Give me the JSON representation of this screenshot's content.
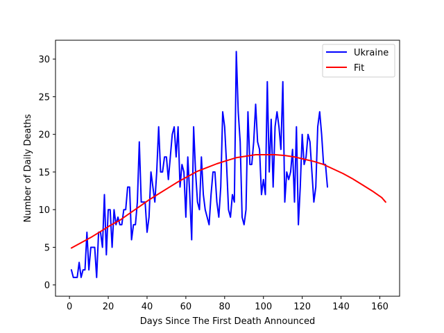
{
  "chart_data": {
    "type": "line",
    "title": "",
    "xlabel": "Days Since The First Death Announced",
    "ylabel": "Number of Daily Deaths",
    "xlim": [
      -7.2,
      170.2
    ],
    "ylim": [
      -1.5,
      32.5
    ],
    "xticks": [
      0,
      20,
      40,
      60,
      80,
      100,
      120,
      140,
      160
    ],
    "yticks": [
      0,
      5,
      10,
      15,
      20,
      25,
      30
    ],
    "grid": false,
    "legend_position": "top-right",
    "series": [
      {
        "name": "Ukraine",
        "color": "#0000ff",
        "x": [
          1,
          2,
          3,
          4,
          5,
          6,
          7,
          8,
          9,
          10,
          11,
          12,
          13,
          14,
          15,
          16,
          17,
          18,
          19,
          20,
          21,
          22,
          23,
          24,
          25,
          26,
          27,
          28,
          29,
          30,
          31,
          32,
          33,
          34,
          35,
          36,
          37,
          38,
          39,
          40,
          41,
          42,
          43,
          44,
          45,
          46,
          47,
          48,
          49,
          50,
          51,
          52,
          53,
          54,
          55,
          56,
          57,
          58,
          59,
          60,
          61,
          62,
          63,
          64,
          65,
          66,
          67,
          68,
          69,
          70,
          71,
          72,
          73,
          74,
          75,
          76,
          77,
          78,
          79,
          80,
          81,
          82,
          83,
          84,
          85,
          86,
          87,
          88,
          89,
          90,
          91,
          92,
          93,
          94,
          95,
          96,
          97,
          98,
          99,
          100,
          101,
          102,
          103,
          104,
          105,
          106,
          107,
          108,
          109,
          110,
          111,
          112,
          113,
          114,
          115,
          116,
          117,
          118,
          119,
          120,
          121,
          122,
          123,
          124,
          125,
          126,
          127,
          128,
          129,
          130,
          131,
          132,
          133
        ],
        "y": [
          2,
          1,
          1,
          1,
          3,
          1,
          2,
          2,
          7,
          2,
          5,
          5,
          5,
          1,
          7,
          7,
          5,
          12,
          4,
          10,
          10,
          5,
          10,
          8,
          9,
          8,
          8,
          10,
          10,
          13,
          13,
          6,
          8,
          8,
          11,
          19,
          11,
          11,
          11,
          7,
          9,
          15,
          13,
          11,
          15,
          21,
          15,
          15,
          17,
          17,
          14,
          17,
          20,
          21,
          17,
          21,
          13,
          16,
          15,
          9,
          17,
          12,
          6,
          21,
          15,
          11,
          10,
          17,
          12,
          10,
          9,
          8,
          12,
          15,
          15,
          11,
          9,
          13,
          23,
          21,
          16,
          10,
          9,
          12,
          11,
          31,
          23,
          19,
          9,
          8,
          10,
          23,
          16,
          16,
          19,
          24,
          19,
          18,
          12,
          14,
          12,
          27,
          15,
          22,
          13,
          21,
          23,
          21,
          18,
          27,
          11,
          15,
          14,
          15,
          18,
          11,
          21,
          8,
          13,
          20,
          16,
          17,
          20,
          19,
          15,
          11,
          13,
          21,
          23,
          20,
          16,
          16,
          13
        ]
      },
      {
        "name": "Fit",
        "color": "#ff0000",
        "x": [
          1,
          6,
          11,
          16,
          21,
          26,
          31,
          36,
          41,
          46,
          51,
          56,
          61,
          66,
          71,
          76,
          81,
          86,
          91,
          96,
          101,
          106,
          111,
          116,
          121,
          126,
          131,
          136,
          141,
          146,
          151,
          156,
          161,
          163
        ],
        "y": [
          4.9,
          5.6,
          6.3,
          7.1,
          7.9,
          8.6,
          9.5,
          10.4,
          11.3,
          12.1,
          12.9,
          13.7,
          14.4,
          15.1,
          15.6,
          16.1,
          16.5,
          16.9,
          17.1,
          17.3,
          17.3,
          17.3,
          17.2,
          17.0,
          16.7,
          16.4,
          16.0,
          15.4,
          14.8,
          14.1,
          13.3,
          12.5,
          11.6,
          11.0
        ]
      }
    ]
  }
}
